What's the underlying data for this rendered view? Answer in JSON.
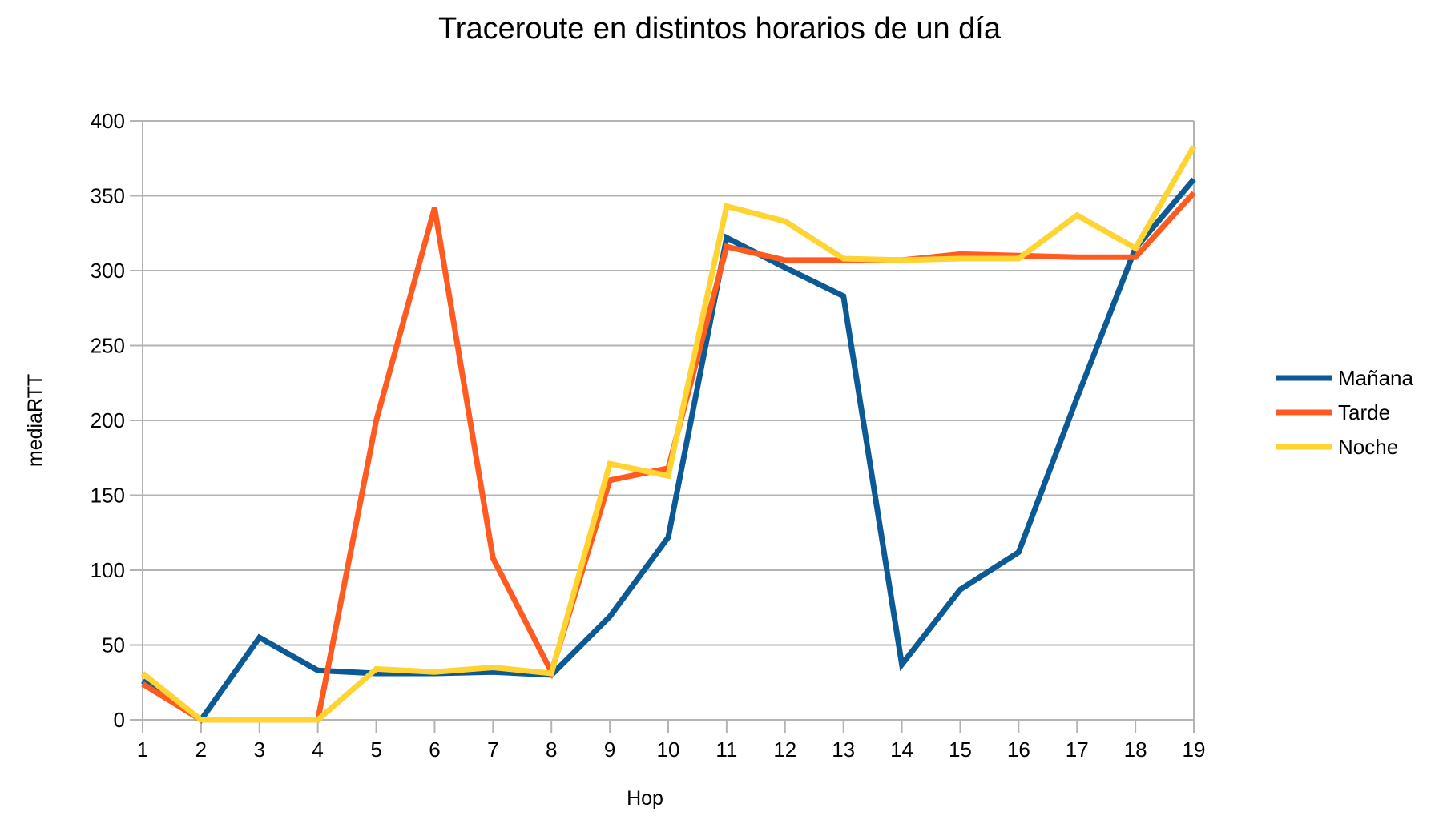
{
  "chart_data": {
    "type": "line",
    "title": "Traceroute en distintos horarios de un día",
    "xlabel": "Hop",
    "ylabel": "mediaRTT",
    "x": [
      1,
      2,
      3,
      4,
      5,
      6,
      7,
      8,
      9,
      10,
      11,
      12,
      13,
      14,
      15,
      16,
      17,
      18,
      19
    ],
    "ylim": [
      0,
      400
    ],
    "yticks": [
      0,
      50,
      100,
      150,
      200,
      250,
      300,
      350,
      400
    ],
    "grid": true,
    "legend_position": "right",
    "series": [
      {
        "name": "Mañana",
        "color": "#0b5a96",
        "values": [
          26,
          0,
          55,
          33,
          31,
          31,
          32,
          30,
          69,
          122,
          322,
          302,
          283,
          37,
          87,
          112,
          215,
          315,
          361
        ]
      },
      {
        "name": "Tarde",
        "color": "#ff5a20",
        "values": [
          24,
          0,
          0,
          0,
          200,
          342,
          108,
          32,
          160,
          168,
          316,
          307,
          307,
          307,
          311,
          310,
          309,
          309,
          352
        ]
      },
      {
        "name": "Noche",
        "color": "#ffd332",
        "values": [
          31,
          0,
          0,
          0,
          34,
          32,
          35,
          31,
          171,
          163,
          343,
          333,
          308,
          307,
          308,
          308,
          337,
          315,
          383
        ]
      }
    ]
  }
}
